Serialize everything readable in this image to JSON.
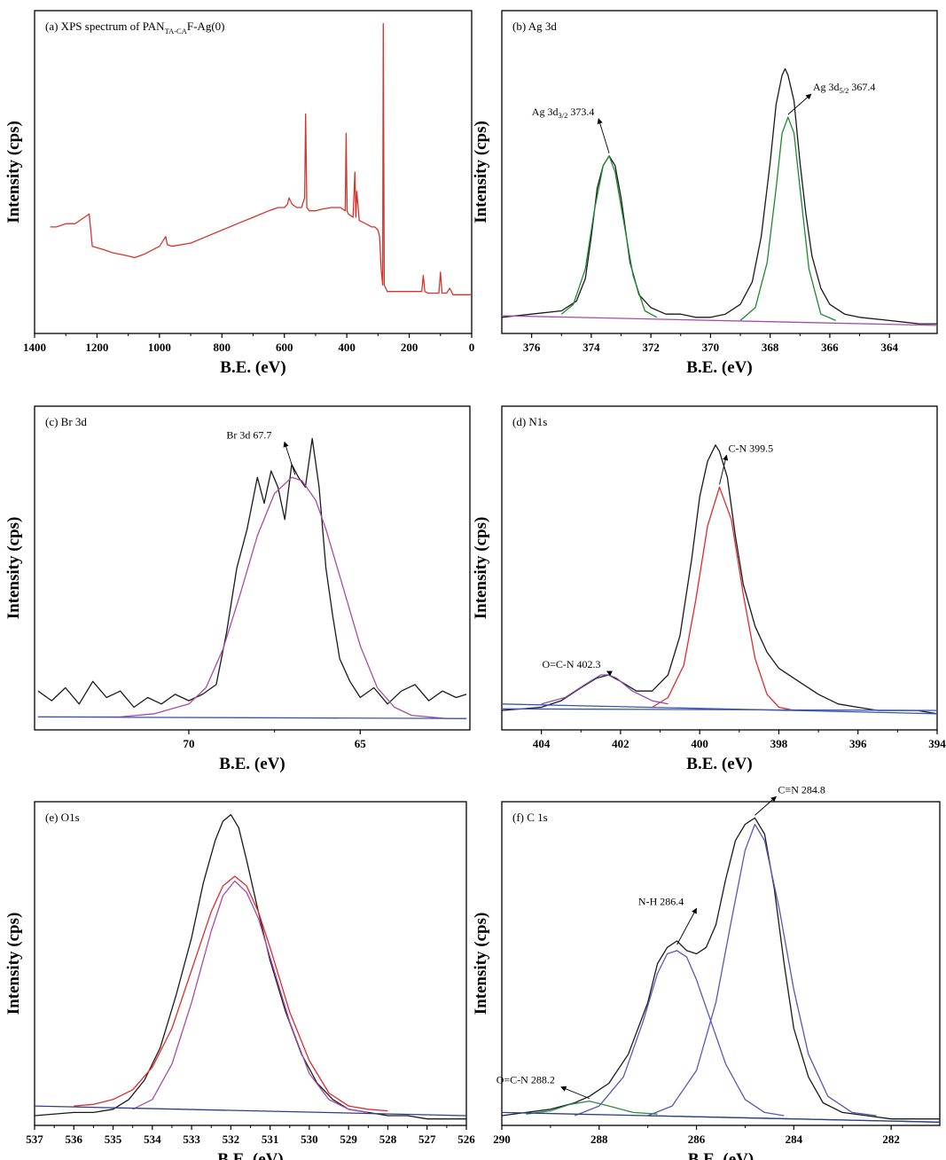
{
  "chart_data": [
    {
      "id": "a",
      "type": "line",
      "title": "(a) XPS spectrum of PAN",
      "title_sub": "TA-CA",
      "title_end": "F-Ag(0)",
      "xlabel": "B.E. (eV)",
      "ylabel": "Intensity (cps)",
      "xlim": [
        1400,
        0
      ],
      "ylim": [
        0,
        1
      ],
      "xticks": [
        1400,
        1200,
        1000,
        800,
        600,
        400,
        200,
        0
      ],
      "xaxis_reversed": true,
      "series": [
        {
          "color": "#d9322d",
          "x": [
            1350,
            1330,
            1300,
            1270,
            1240,
            1225,
            1215,
            1180,
            1150,
            1100,
            1080,
            1050,
            1000,
            980,
            975,
            960,
            900,
            850,
            800,
            750,
            700,
            650,
            620,
            600,
            590,
            585,
            575,
            560,
            545,
            535,
            532,
            528,
            520,
            500,
            480,
            450,
            420,
            405,
            402,
            399,
            395,
            380,
            374,
            371,
            368,
            360,
            340,
            320,
            310,
            300,
            295,
            290,
            285,
            283,
            280,
            270,
            250,
            200,
            180,
            160,
            155,
            150,
            140,
            120,
            105,
            100,
            95,
            80,
            70,
            60,
            40,
            20,
            0
          ],
          "y": [
            0.33,
            0.33,
            0.34,
            0.34,
            0.36,
            0.37,
            0.27,
            0.26,
            0.25,
            0.24,
            0.235,
            0.245,
            0.27,
            0.3,
            0.275,
            0.27,
            0.28,
            0.3,
            0.32,
            0.34,
            0.36,
            0.38,
            0.39,
            0.39,
            0.4,
            0.42,
            0.4,
            0.39,
            0.39,
            0.42,
            0.68,
            0.39,
            0.38,
            0.38,
            0.385,
            0.39,
            0.39,
            0.38,
            0.62,
            0.38,
            0.37,
            0.36,
            0.5,
            0.36,
            0.44,
            0.35,
            0.34,
            0.33,
            0.33,
            0.32,
            0.3,
            0.2,
            0.15,
            0.96,
            0.15,
            0.13,
            0.13,
            0.13,
            0.13,
            0.13,
            0.18,
            0.13,
            0.125,
            0.125,
            0.125,
            0.19,
            0.125,
            0.125,
            0.14,
            0.12,
            0.12,
            0.12,
            0.12
          ]
        }
      ]
    },
    {
      "id": "b",
      "type": "line",
      "title": "(b) Ag 3d",
      "xlabel": "B.E. (eV)",
      "ylabel": "Intensity (cps)",
      "xlim": [
        377,
        362.4
      ],
      "ylim": [
        0,
        1
      ],
      "xticks": [
        376,
        374,
        372,
        370,
        368,
        366,
        364
      ],
      "xaxis_reversed": true,
      "series": [
        {
          "color": "#1a1a1a",
          "x": [
            377,
            376,
            375,
            374.5,
            374.2,
            374,
            373.8,
            373.6,
            373.4,
            373.2,
            373,
            372.7,
            372.4,
            372,
            371.5,
            371,
            370.5,
            370,
            369.5,
            369,
            368.6,
            368.3,
            368,
            367.8,
            367.6,
            367.5,
            367.4,
            367.2,
            367,
            366.8,
            366.6,
            366.3,
            366,
            365.5,
            365,
            364,
            363,
            362.4
          ],
          "y": [
            0.05,
            0.06,
            0.07,
            0.1,
            0.17,
            0.3,
            0.45,
            0.52,
            0.55,
            0.52,
            0.42,
            0.22,
            0.12,
            0.08,
            0.06,
            0.06,
            0.05,
            0.05,
            0.06,
            0.09,
            0.16,
            0.3,
            0.53,
            0.71,
            0.8,
            0.82,
            0.8,
            0.72,
            0.53,
            0.37,
            0.24,
            0.14,
            0.09,
            0.06,
            0.05,
            0.04,
            0.03,
            0.03
          ]
        },
        {
          "color": "#1e8a2e",
          "x": [
            375,
            374.6,
            374.2,
            373.9,
            373.6,
            373.4,
            373.2,
            372.9,
            372.6,
            372.2,
            371.8
          ],
          "y": [
            0.06,
            0.09,
            0.2,
            0.38,
            0.52,
            0.55,
            0.5,
            0.34,
            0.18,
            0.07,
            0.05
          ]
        },
        {
          "color": "#1e8a2e",
          "x": [
            369,
            368.5,
            368.1,
            367.8,
            367.6,
            367.4,
            367.2,
            367,
            366.7,
            366.3,
            365.8
          ],
          "y": [
            0.04,
            0.08,
            0.22,
            0.45,
            0.62,
            0.67,
            0.62,
            0.45,
            0.2,
            0.06,
            0.04
          ]
        },
        {
          "color": "#a64ca6",
          "x": [
            377,
            362.4
          ],
          "y": [
            0.055,
            0.025
          ]
        }
      ],
      "annotations": [
        {
          "label": "Ag 3d",
          "sub": "3/2",
          "value": "373.4",
          "x": 373.4,
          "y": 0.55
        },
        {
          "label": "Ag 3d",
          "sub": "5/2",
          "value": "367.4",
          "x": 367.4,
          "y": 0.67
        }
      ]
    },
    {
      "id": "c",
      "type": "line",
      "title": "(c) Br 3d",
      "xlabel": "B.E. (eV)",
      "ylabel": "Intensity (cps)",
      "xlim": [
        74.5,
        61.8
      ],
      "ylim": [
        0,
        1
      ],
      "xticks": [
        70,
        65
      ],
      "xaxis_reversed": true,
      "series": [
        {
          "color": "#1a1a1a",
          "x": [
            74.4,
            74,
            73.6,
            73.2,
            72.8,
            72.4,
            72,
            71.6,
            71.2,
            70.8,
            70.4,
            70,
            69.6,
            69.2,
            68.9,
            68.6,
            68.3,
            68,
            67.8,
            67.6,
            67.4,
            67.2,
            67,
            66.8,
            66.6,
            66.4,
            66.2,
            66,
            65.8,
            65.6,
            65.3,
            65,
            64.6,
            64.2,
            63.8,
            63.4,
            63,
            62.6,
            62.2,
            61.9
          ],
          "y": [
            0.12,
            0.09,
            0.13,
            0.08,
            0.15,
            0.1,
            0.12,
            0.07,
            0.1,
            0.08,
            0.11,
            0.09,
            0.11,
            0.14,
            0.3,
            0.5,
            0.62,
            0.78,
            0.7,
            0.8,
            0.75,
            0.65,
            0.82,
            0.78,
            0.75,
            0.9,
            0.75,
            0.5,
            0.35,
            0.22,
            0.15,
            0.1,
            0.13,
            0.08,
            0.12,
            0.14,
            0.09,
            0.12,
            0.1,
            0.11
          ]
        },
        {
          "color": "#a64ca6",
          "x": [
            74.4,
            72,
            71,
            70,
            69.5,
            69,
            68.5,
            68,
            67.5,
            67,
            66.7,
            66.3,
            66,
            65.5,
            65,
            64.5,
            64,
            63.5,
            62.5,
            61.9
          ],
          "y": [
            0.04,
            0.04,
            0.05,
            0.08,
            0.13,
            0.25,
            0.42,
            0.6,
            0.73,
            0.78,
            0.77,
            0.71,
            0.62,
            0.44,
            0.26,
            0.13,
            0.07,
            0.045,
            0.035,
            0.035
          ]
        },
        {
          "color": "#3a54b5",
          "x": [
            74.4,
            61.9
          ],
          "y": [
            0.04,
            0.035
          ]
        }
      ],
      "annotations": [
        {
          "label": "Br 3d 67.7",
          "x": 66.9,
          "y": 0.78
        }
      ]
    },
    {
      "id": "d",
      "type": "line",
      "title": "(d) N1s",
      "xlabel": "B.E. (eV)",
      "ylabel": "Intensity (cps)",
      "xlim": [
        405,
        394
      ],
      "ylim": [
        0,
        1
      ],
      "xticks": [
        404,
        402,
        400,
        398,
        396,
        394
      ],
      "xaxis_reversed": true,
      "series": [
        {
          "color": "#1a1a1a",
          "x": [
            405,
            404,
            403.5,
            403,
            402.6,
            402.3,
            402,
            401.6,
            401.2,
            400.8,
            400.5,
            400.2,
            400,
            399.8,
            399.6,
            399.5,
            399.3,
            399.1,
            398.9,
            398.6,
            398.3,
            398,
            397.5,
            397,
            396.5,
            396,
            395.5,
            395,
            394.5,
            394
          ],
          "y": [
            0.06,
            0.07,
            0.09,
            0.13,
            0.16,
            0.17,
            0.15,
            0.12,
            0.12,
            0.17,
            0.29,
            0.53,
            0.72,
            0.83,
            0.88,
            0.86,
            0.78,
            0.6,
            0.45,
            0.32,
            0.24,
            0.19,
            0.15,
            0.11,
            0.08,
            0.07,
            0.06,
            0.06,
            0.06,
            0.05
          ]
        },
        {
          "color": "#e02a2a",
          "x": [
            401.2,
            400.8,
            400.4,
            400.1,
            399.8,
            399.5,
            399.2,
            398.9,
            398.6,
            398.3,
            398,
            397.6
          ],
          "y": [
            0.07,
            0.1,
            0.2,
            0.4,
            0.63,
            0.75,
            0.65,
            0.42,
            0.22,
            0.11,
            0.07,
            0.06
          ]
        },
        {
          "color": "#8a4ca8",
          "x": [
            404,
            403.4,
            402.9,
            402.5,
            402.3,
            402.1,
            401.7,
            401.2,
            400.8
          ],
          "y": [
            0.08,
            0.1,
            0.14,
            0.17,
            0.17,
            0.16,
            0.12,
            0.09,
            0.08
          ]
        },
        {
          "color": "#3a54b5",
          "x": [
            405,
            394
          ],
          "y": [
            0.08,
            0.05
          ]
        },
        {
          "color": "#3a54b5",
          "x": [
            405,
            394
          ],
          "y": [
            0.065,
            0.06
          ]
        }
      ],
      "annotations": [
        {
          "label": "C-N 399.5",
          "x": 399.5,
          "y": 0.75
        },
        {
          "label": "O=C-N 402.3",
          "x": 402.3,
          "y": 0.17
        }
      ]
    },
    {
      "id": "e",
      "type": "line",
      "title": "(e) O1s",
      "xlabel": "B.E. (eV)",
      "ylabel": "Intensity (cps)",
      "xlim": [
        537,
        526
      ],
      "ylim": [
        0,
        1
      ],
      "xticks": [
        537,
        536,
        535,
        534,
        533,
        532,
        531,
        530,
        529,
        528,
        527,
        526
      ],
      "xaxis_reversed": true,
      "series": [
        {
          "color": "#1a1a1a",
          "x": [
            537,
            536,
            535.5,
            535,
            534.6,
            534.2,
            533.8,
            533.4,
            533,
            532.7,
            532.4,
            532.2,
            532,
            531.8,
            531.6,
            531.3,
            531,
            530.6,
            530.2,
            529.8,
            529.4,
            529,
            528.5,
            528,
            527.5,
            527,
            526.5,
            526
          ],
          "y": [
            0.03,
            0.04,
            0.04,
            0.05,
            0.08,
            0.14,
            0.24,
            0.4,
            0.58,
            0.75,
            0.88,
            0.94,
            0.96,
            0.92,
            0.82,
            0.66,
            0.51,
            0.35,
            0.22,
            0.13,
            0.08,
            0.05,
            0.04,
            0.03,
            0.03,
            0.02,
            0.02,
            0.02
          ]
        },
        {
          "color": "#e02a2a",
          "x": [
            536,
            535.5,
            535,
            534.5,
            534,
            533.5,
            533,
            532.5,
            532.2,
            531.9,
            531.6,
            531.3,
            531,
            530.5,
            530,
            529.5,
            529,
            528.5,
            528
          ],
          "y": [
            0.06,
            0.065,
            0.08,
            0.11,
            0.18,
            0.3,
            0.48,
            0.66,
            0.74,
            0.77,
            0.74,
            0.66,
            0.55,
            0.35,
            0.2,
            0.1,
            0.06,
            0.05,
            0.045
          ]
        },
        {
          "color": "#a64ca6",
          "x": [
            534.5,
            534,
            533.5,
            533,
            532.5,
            532.2,
            531.9,
            531.6,
            531.3,
            531,
            530.5,
            530,
            529.5,
            529,
            528.5
          ],
          "y": [
            0.05,
            0.08,
            0.19,
            0.38,
            0.6,
            0.71,
            0.755,
            0.72,
            0.64,
            0.52,
            0.32,
            0.16,
            0.08,
            0.05,
            0.04
          ]
        },
        {
          "color": "#2c3e8c",
          "x": [
            537,
            526
          ],
          "y": [
            0.06,
            0.03
          ]
        }
      ]
    },
    {
      "id": "f",
      "type": "line",
      "title": "(f) C 1s",
      "xlabel": "B.E. (eV)",
      "ylabel": "Intensity (cps)",
      "xlim": [
        290,
        281
      ],
      "ylim": [
        0,
        1
      ],
      "xticks": [
        290,
        288,
        286,
        284,
        282
      ],
      "xaxis_reversed": true,
      "series": [
        {
          "color": "#1a1a1a",
          "x": [
            290,
            289.5,
            289,
            288.5,
            288.2,
            287.8,
            287.4,
            287,
            286.8,
            286.6,
            286.4,
            286.2,
            286,
            285.8,
            285.6,
            285.4,
            285.2,
            285,
            284.8,
            284.6,
            284.4,
            284.2,
            284,
            283.7,
            283.4,
            283,
            282.5,
            282,
            281.5,
            281
          ],
          "y": [
            0.03,
            0.04,
            0.05,
            0.07,
            0.09,
            0.13,
            0.22,
            0.38,
            0.5,
            0.55,
            0.57,
            0.54,
            0.53,
            0.55,
            0.62,
            0.76,
            0.88,
            0.93,
            0.95,
            0.9,
            0.73,
            0.5,
            0.3,
            0.15,
            0.07,
            0.04,
            0.03,
            0.02,
            0.02,
            0.02
          ]
        },
        {
          "color": "#5858b5",
          "x": [
            288.5,
            288,
            287.5,
            287.1,
            286.8,
            286.6,
            286.4,
            286.2,
            286,
            285.7,
            285.4,
            285,
            284.6,
            284.2
          ],
          "y": [
            0.03,
            0.06,
            0.15,
            0.32,
            0.47,
            0.53,
            0.54,
            0.52,
            0.45,
            0.32,
            0.19,
            0.08,
            0.04,
            0.03
          ]
        },
        {
          "color": "#5858b5",
          "x": [
            287,
            286.5,
            286,
            285.6,
            285.3,
            285,
            284.8,
            284.6,
            284.3,
            284,
            283.7,
            283.3,
            282.8,
            282.3
          ],
          "y": [
            0.03,
            0.06,
            0.17,
            0.38,
            0.62,
            0.85,
            0.93,
            0.88,
            0.67,
            0.42,
            0.22,
            0.09,
            0.04,
            0.03
          ]
        },
        {
          "color": "#2e8a45",
          "x": [
            289.5,
            289,
            288.6,
            288.2,
            287.8,
            287.3,
            286.8
          ],
          "y": [
            0.035,
            0.045,
            0.065,
            0.075,
            0.06,
            0.04,
            0.035
          ]
        },
        {
          "color": "#2e8a45",
          "x": [
            287,
            284,
            281
          ],
          "y": [
            0.03,
            0.02,
            0.01
          ]
        },
        {
          "color": "#2c3e8c",
          "x": [
            290,
            281
          ],
          "y": [
            0.04,
            0.01
          ]
        }
      ],
      "annotations": [
        {
          "label": "C≡N 284.8",
          "x": 284.8,
          "y": 0.95
        },
        {
          "label": "N-H 286.4",
          "x": 286.4,
          "y": 0.55
        },
        {
          "label": "O=C-N 288.2",
          "x": 288.2,
          "y": 0.075
        }
      ]
    }
  ]
}
